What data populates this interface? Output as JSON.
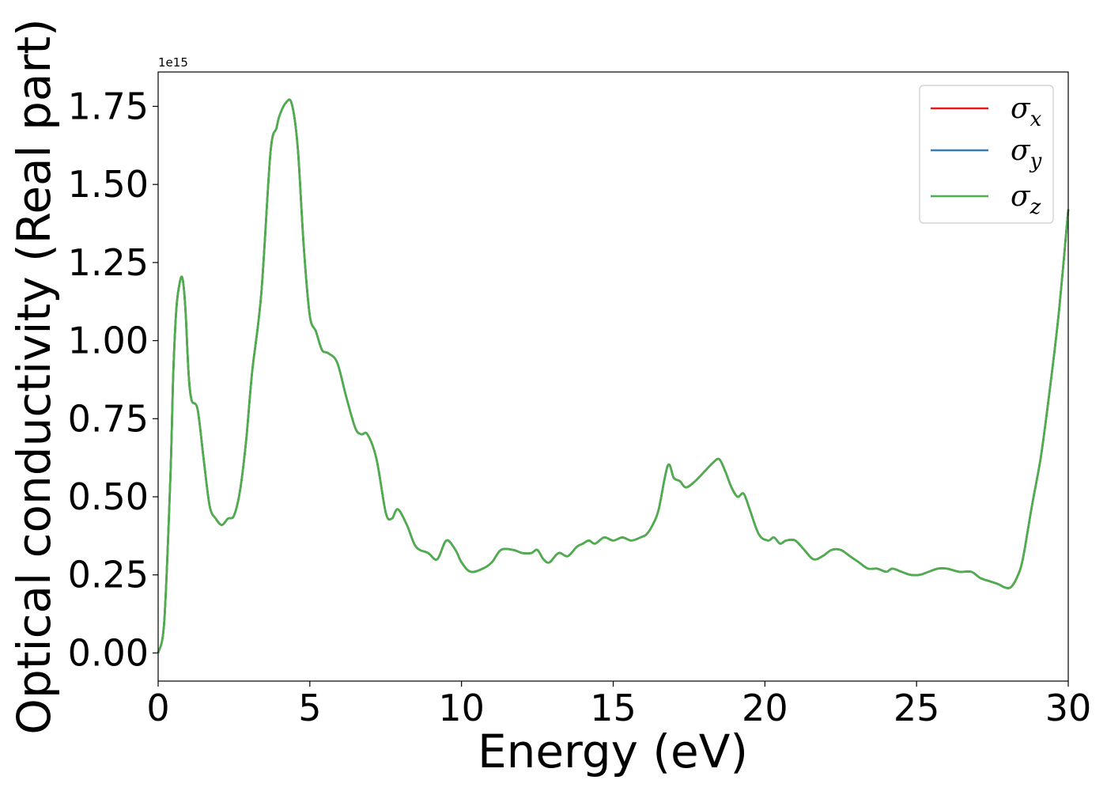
{
  "chart_data": {
    "type": "line",
    "xlabel": "Energy (eV)",
    "ylabel": "Optical conductivity (Real part)",
    "y_offset_label": "1e15",
    "xlim": [
      0,
      30
    ],
    "ylim": [
      -0.09,
      1.86
    ],
    "x_ticks": [
      0,
      5,
      10,
      15,
      20,
      25,
      30
    ],
    "x_tick_labels": [
      "0",
      "5",
      "10",
      "15",
      "20",
      "25",
      "30"
    ],
    "y_ticks": [
      0.0,
      0.25,
      0.5,
      0.75,
      1.0,
      1.25,
      1.5,
      1.75
    ],
    "y_tick_labels": [
      "0.00",
      "0.25",
      "0.50",
      "0.75",
      "1.00",
      "1.25",
      "1.50",
      "1.75"
    ],
    "grid": false,
    "legend_position": "top-right",
    "series": [
      {
        "name": "σ",
        "subscript": "x",
        "color": "#e41a1c"
      },
      {
        "name": "σ",
        "subscript": "y",
        "color": "#377eb8"
      },
      {
        "name": "σ",
        "subscript": "z",
        "color": "#4daf4a"
      }
    ],
    "x": [
      0,
      0.2,
      0.4,
      0.5,
      0.6,
      0.7,
      0.8,
      0.9,
      1.0,
      1.1,
      1.3,
      1.5,
      1.7,
      1.9,
      2.1,
      2.3,
      2.5,
      2.7,
      2.9,
      3.1,
      3.4,
      3.7,
      3.9,
      4.0,
      4.2,
      4.4,
      4.6,
      4.8,
      5.0,
      5.2,
      5.4,
      5.6,
      5.9,
      6.2,
      6.5,
      6.7,
      6.9,
      7.2,
      7.5,
      7.7,
      7.9,
      8.2,
      8.5,
      8.9,
      9.2,
      9.5,
      9.8,
      10.0,
      10.3,
      10.7,
      11.0,
      11.3,
      11.7,
      12.0,
      12.3,
      12.5,
      12.7,
      12.9,
      13.2,
      13.5,
      13.8,
      14.0,
      14.2,
      14.4,
      14.7,
      15.0,
      15.3,
      15.6,
      15.9,
      16.1,
      16.3,
      16.5,
      16.8,
      17.0,
      17.2,
      17.4,
      17.7,
      18.0,
      18.3,
      18.5,
      18.7,
      18.9,
      19.1,
      19.3,
      19.5,
      19.8,
      20.1,
      20.3,
      20.5,
      20.7,
      21.0,
      21.3,
      21.6,
      21.9,
      22.2,
      22.5,
      22.8,
      23.1,
      23.4,
      23.7,
      24.0,
      24.2,
      24.5,
      24.8,
      25.1,
      25.4,
      25.7,
      26.0,
      26.4,
      26.8,
      27.1,
      27.4,
      27.7,
      27.9,
      28.1,
      28.3,
      28.5,
      28.8,
      29.1,
      29.4,
      29.7,
      30.0
    ],
    "y": [
      0.0,
      0.1,
      0.55,
      0.9,
      1.1,
      1.18,
      1.2,
      1.1,
      0.9,
      0.81,
      0.78,
      0.62,
      0.47,
      0.43,
      0.41,
      0.43,
      0.44,
      0.52,
      0.68,
      0.9,
      1.15,
      1.6,
      1.68,
      1.72,
      1.76,
      1.76,
      1.62,
      1.3,
      1.08,
      1.03,
      0.97,
      0.96,
      0.93,
      0.82,
      0.72,
      0.7,
      0.7,
      0.62,
      0.45,
      0.43,
      0.46,
      0.41,
      0.34,
      0.32,
      0.3,
      0.36,
      0.33,
      0.29,
      0.26,
      0.27,
      0.29,
      0.33,
      0.33,
      0.32,
      0.32,
      0.33,
      0.3,
      0.29,
      0.32,
      0.31,
      0.34,
      0.35,
      0.36,
      0.35,
      0.37,
      0.36,
      0.37,
      0.36,
      0.37,
      0.38,
      0.41,
      0.46,
      0.6,
      0.56,
      0.55,
      0.53,
      0.55,
      0.58,
      0.61,
      0.62,
      0.58,
      0.53,
      0.5,
      0.51,
      0.46,
      0.38,
      0.36,
      0.37,
      0.35,
      0.36,
      0.36,
      0.33,
      0.3,
      0.31,
      0.33,
      0.33,
      0.31,
      0.29,
      0.27,
      0.27,
      0.26,
      0.27,
      0.26,
      0.25,
      0.25,
      0.26,
      0.27,
      0.27,
      0.26,
      0.26,
      0.24,
      0.23,
      0.22,
      0.21,
      0.21,
      0.24,
      0.3,
      0.47,
      0.63,
      0.85,
      1.1,
      1.42
    ]
  }
}
